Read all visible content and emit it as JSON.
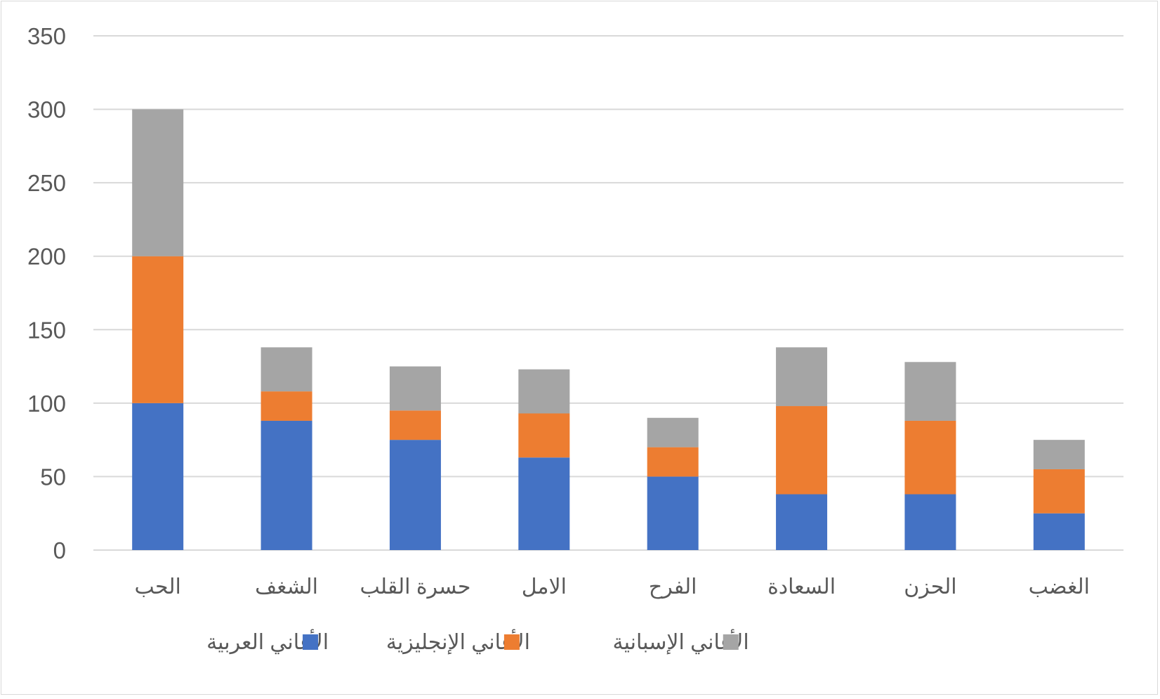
{
  "chart_data": {
    "type": "bar",
    "stacked": true,
    "title": "",
    "xlabel": "",
    "ylabel": "",
    "ylim": [
      0,
      350
    ],
    "yticks": [
      0,
      50,
      100,
      150,
      200,
      250,
      300,
      350
    ],
    "grid": true,
    "legend_position": "bottom",
    "categories": [
      "الحب",
      "الشغف",
      "حسرة القلب",
      "الامل",
      "الفرح",
      "السعادة",
      "الحزن",
      "الغضب"
    ],
    "series": [
      {
        "name": "الأغاني العربية",
        "color": "#4472C4",
        "values": [
          100,
          88,
          75,
          63,
          50,
          38,
          38,
          25
        ]
      },
      {
        "name": "الأغاني الإنجليزية",
        "color": "#ED7D31",
        "values": [
          100,
          20,
          20,
          30,
          20,
          60,
          50,
          30
        ]
      },
      {
        "name": "الأغاني الإسبانية",
        "color": "#A5A5A5",
        "values": [
          100,
          30,
          30,
          30,
          20,
          40,
          40,
          20
        ]
      }
    ]
  }
}
